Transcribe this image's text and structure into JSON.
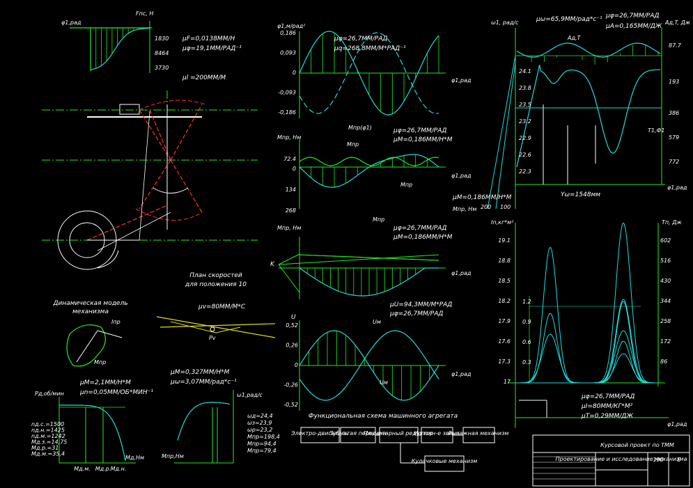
{
  "force": {
    "y_axis": "φ1,рад",
    "x_axis": "Fпс, Н",
    "ticks": [
      "1830",
      "8464",
      "3730"
    ],
    "scale_f": "μF=0,0138ММ/Н",
    "scale_phi": "μφ=19,1ММ/РАД⁻¹"
  },
  "mechanism": {
    "scale_l": "μl =200ММ/М",
    "plan_title": [
      "План скоростей",
      "для положения 10"
    ],
    "scale_v": "μv=80ММ/М*С",
    "pole": "Pv"
  },
  "dynamic_model": {
    "title": [
      "Динамическая модель",
      "механизма"
    ],
    "inertia": "Iпр",
    "moment": "Mпр"
  },
  "drive_moment": {
    "scale_m": "μM=2,1ММ/Н*М",
    "scale_n": "μn=0,05ММ/ОБ*МИН⁻¹",
    "y_axis": "Pд,об/мин",
    "x_axis": "Mд,Нм",
    "values": [
      "nд.с.=1500",
      "nд.н.=1425",
      "nд.м.=1242",
      "Mд.з.=14,75",
      "Mд.р.=31",
      "Mд.м.=35,4"
    ],
    "x_labels": [
      "Mд.м.",
      "Mд.р.",
      "Mд.н."
    ]
  },
  "reduced_moment": {
    "scale_m": "μM=0,327ММ/Н*М",
    "scale_w": "μω=3,07ММ/рад*с⁻¹",
    "y_axis": "ω1,рад/с",
    "x_axis": "Mпр,Нм",
    "values": [
      "ωд=24,4",
      "ωз=23,9",
      "ωр=23,2",
      "Mпр=198,4",
      "Mпр=94,4",
      "Mпр=79,4"
    ]
  },
  "analog": {
    "y_axis": "φ1,м/рад²",
    "ticks": [
      "0,186",
      "0,093",
      "0",
      "-0,093",
      "-0,186"
    ],
    "scale_phi": "μφ=26,7ММ/РАД",
    "scale_q": "μq=268,8ММ/М*РАД⁻¹",
    "x_axis": "φ1,рад"
  },
  "moments": {
    "y_axis": "Mпр, Нм",
    "ticks": [
      "72.4",
      "0",
      "134",
      "268"
    ],
    "scale_phi": "μφ=26,7ММ/РАД",
    "scale_m": "μM=0,186ММ/Н*М",
    "labels": [
      "Mпр",
      "Mпр(φ1)",
      "Mпр",
      "Mпр"
    ],
    "x_axis": "φ1,рад"
  },
  "work": {
    "y_axis": "Mпр, Нм",
    "k": "K",
    "scale_phi": "μφ=26,7ММ/РАД",
    "scale_m": "μM=0,186ММ/Н*М",
    "x_axis": "φ1,рад"
  },
  "transfer": {
    "y_axis": "U",
    "ticks": [
      "0,52",
      "0,26",
      "0",
      "-0,26",
      "-0,52"
    ],
    "scale_u": "μU=94,3ММ/М*РАД",
    "scale_phi": "μφ=26,7ММ/РАД",
    "labels": [
      "Uм",
      "Uм"
    ],
    "x_axis": "φ1,рад"
  },
  "scheme": {
    "title": "Функциональная схема машинного агрегата",
    "blocks": [
      "Электро-двигатель",
      "Зубчатая передача",
      "Планетарный редуктор",
      "Исполн-е звено",
      "Рычажная механизм",
      "Кулачковые механизм"
    ]
  },
  "energy": {
    "y_axis": "ω1, рад/с",
    "scale_w": "μω=65,9ММ/рад*с⁻¹",
    "scale_phi": "μφ=26,7ММ/РАД",
    "scale_a": "μA=0,165ММ/ДЖ",
    "y2_axis": "Aд,T, Дж",
    "left_ticks": [
      "24.1",
      "23.8",
      "23.5",
      "23.2",
      "22.9",
      "22.6",
      "22.3"
    ],
    "right_ticks": [
      "87.7",
      "193",
      "386",
      "579",
      "772"
    ],
    "x_axis": "φ1,рад",
    "y_omega": "Yω=1548мм",
    "scale_m": "μM=0,186ММ/Н*М",
    "m_axis": "Mпр, Нм",
    "m_ticks": [
      "200",
      "100"
    ],
    "curve_labels": [
      "Aд,T",
      "T1,Ф1"
    ]
  },
  "inertia": {
    "y_axis": "Iп,кг*м²",
    "left_ticks": [
      "19.1",
      "18.8",
      "18.5",
      "18.2",
      "17.9",
      "17.6",
      "17.3",
      "17"
    ],
    "inner_ticks": [
      "1.2",
      "0.9",
      "0.6",
      "0.3"
    ],
    "right_ticks": [
      "602",
      "516",
      "430",
      "344",
      "258",
      "172",
      "86"
    ],
    "y2_axis": "Tп, Дж",
    "scale_phi": "μφ=26,7ММ/РАД",
    "scale_i": "μI=80ММ/КГ*М²",
    "scale_t": "μT=0,29ММ/ДЖ",
    "x_axis": "φ1,рад"
  },
  "title_block": {
    "title": "Курсовой проект по ТММ",
    "subtitle": "Проектирование и исследование механизма",
    "sheet": "190",
    "letter": "Б"
  }
}
